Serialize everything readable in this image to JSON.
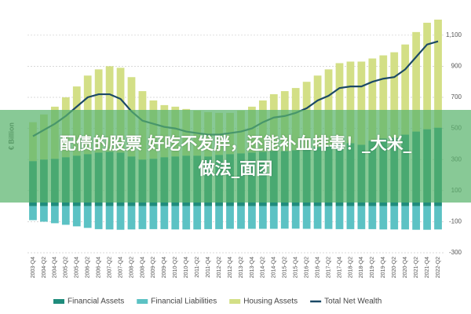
{
  "chart_data": {
    "type": "stacked-bar-line",
    "ylabel": "€ Billion",
    "categories": [
      "2003-Q4",
      "2004-Q2",
      "2004-Q4",
      "2005-Q2",
      "2005-Q4",
      "2006-Q2",
      "2006-Q4",
      "2007-Q2",
      "2007-Q4",
      "2008-Q2",
      "2008-Q4",
      "2009-Q2",
      "2009-Q4",
      "2010-Q2",
      "2010-Q4",
      "2011-Q2",
      "2011-Q4",
      "2012-Q2",
      "2012-Q4",
      "2013-Q2",
      "2013-Q4",
      "2014-Q2",
      "2014-Q4",
      "2015-Q2",
      "2015-Q4",
      "2016-Q2",
      "2016-Q4",
      "2017-Q2",
      "2017-Q4",
      "2018-Q2",
      "2018-Q4",
      "2019-Q2",
      "2019-Q4",
      "2020-Q2",
      "2020-Q4",
      "2021-Q2",
      "2021-Q4",
      "2022-Q2"
    ],
    "series": [
      {
        "name": "Financial Assets",
        "color": "#1f8c7c",
        "kind": "bar",
        "values": [
          290,
          300,
          305,
          315,
          325,
          335,
          345,
          350,
          345,
          320,
          300,
          305,
          315,
          320,
          325,
          325,
          320,
          330,
          335,
          340,
          345,
          350,
          355,
          355,
          360,
          370,
          380,
          390,
          400,
          405,
          395,
          420,
          435,
          440,
          460,
          480,
          495,
          505
        ]
      },
      {
        "name": "Financial Liabilities",
        "color": "#5cc2c4",
        "kind": "bar",
        "values": [
          -90,
          -100,
          -110,
          -120,
          -130,
          -140,
          -148,
          -150,
          -152,
          -150,
          -148,
          -148,
          -148,
          -150,
          -150,
          -150,
          -148,
          -148,
          -146,
          -146,
          -146,
          -146,
          -146,
          -145,
          -145,
          -146,
          -146,
          -147,
          -148,
          -148,
          -148,
          -148,
          -150,
          -150,
          -150,
          -152,
          -152,
          -150
        ]
      },
      {
        "name": "Housing Assets",
        "color": "#d3df86",
        "kind": "bar",
        "values": [
          250,
          290,
          335,
          385,
          445,
          505,
          535,
          550,
          545,
          510,
          440,
          375,
          335,
          320,
          300,
          290,
          285,
          270,
          265,
          275,
          295,
          330,
          365,
          385,
          400,
          430,
          460,
          490,
          520,
          525,
          535,
          530,
          535,
          550,
          580,
          640,
          685,
          695
        ]
      },
      {
        "name": "Total Net Wealth",
        "color": "#1b4966",
        "kind": "line",
        "values": [
          450,
          490,
          530,
          580,
          640,
          700,
          720,
          720,
          690,
          610,
          550,
          530,
          510,
          500,
          480,
          470,
          460,
          460,
          470,
          480,
          500,
          540,
          570,
          580,
          600,
          630,
          680,
          710,
          760,
          770,
          770,
          800,
          820,
          830,
          880,
          960,
          1040,
          1060
        ]
      }
    ],
    "ylim": [
      -300,
      1200
    ],
    "yticks": [
      {
        "value": 1100,
        "label": "1,100"
      },
      900,
      700,
      500,
      300,
      100,
      -100,
      -300
    ],
    "grid": true,
    "legend": "bottom"
  },
  "overlay": {
    "lines": [
      "配债的股票 好吃不发胖，还能补血排毒！_大米_",
      "做法_面团"
    ]
  }
}
